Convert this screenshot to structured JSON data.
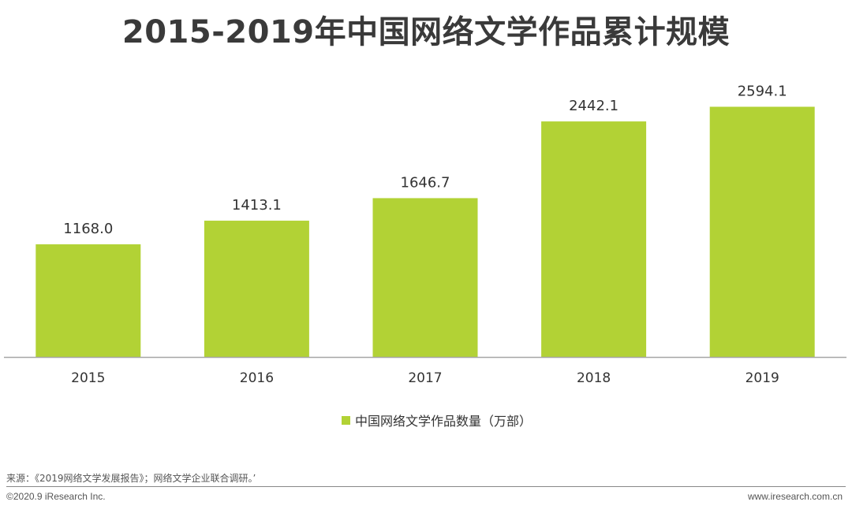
{
  "chart_data": {
    "type": "bar",
    "title": "2015-2019年中国网络文学作品累计规模",
    "categories": [
      "2015",
      "2016",
      "2017",
      "2018",
      "2019"
    ],
    "series": [
      {
        "name": "中国网络文学作品数量（万部）",
        "values": [
          1168.0,
          1413.1,
          1646.7,
          2442.1,
          2594.1
        ],
        "labels": [
          "1168.0",
          "1413.1",
          "1646.7",
          "2442.1",
          "2594.1"
        ]
      }
    ],
    "ylim": [
      0,
      2800
    ],
    "grid": false,
    "legend_position": "bottom-center",
    "xlabel": "",
    "ylabel": ""
  },
  "colors": {
    "bar": "#b2d235",
    "axis": "#a6a6a6"
  },
  "footer": {
    "source": "来源：《2019网络文学发展报告》；网络文学企业联合调研。’",
    "copyright": "©2020.9 iResearch Inc.",
    "website": "www.iresearch.com.cn"
  }
}
